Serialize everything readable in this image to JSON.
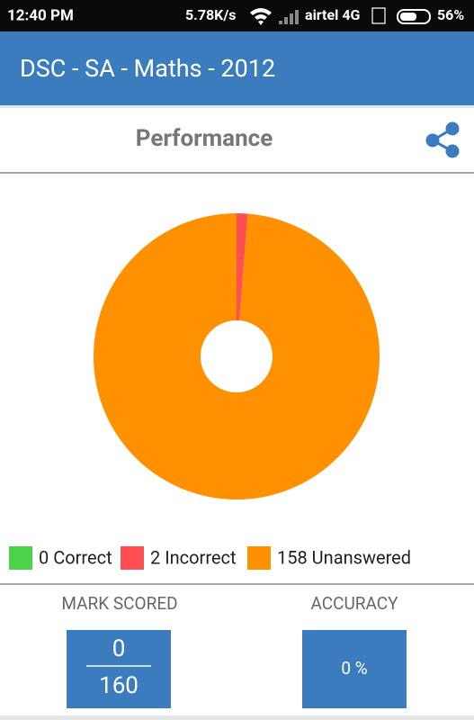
{
  "status_bar": {
    "time": "12:40 PM",
    "speed": "5.78K/s",
    "carrier": "airtel 4G",
    "battery": "56%"
  },
  "app_bar": {
    "title": "DSC - SA - Maths - 2012"
  },
  "card": {
    "title": "Performance"
  },
  "chart_data": {
    "type": "pie",
    "categories": [
      "0 Correct",
      "2 Incorrect",
      "158 Unanswered"
    ],
    "values": [
      0,
      2,
      158
    ],
    "colors": [
      "#4cd34c",
      "#ff4f55",
      "#ff9100"
    ],
    "donut": true
  },
  "scores": {
    "mark_label": "MARK SCORED",
    "mark_value": "0",
    "mark_total": "160",
    "accuracy_label": "ACCURACY",
    "accuracy_value": "0 %"
  }
}
